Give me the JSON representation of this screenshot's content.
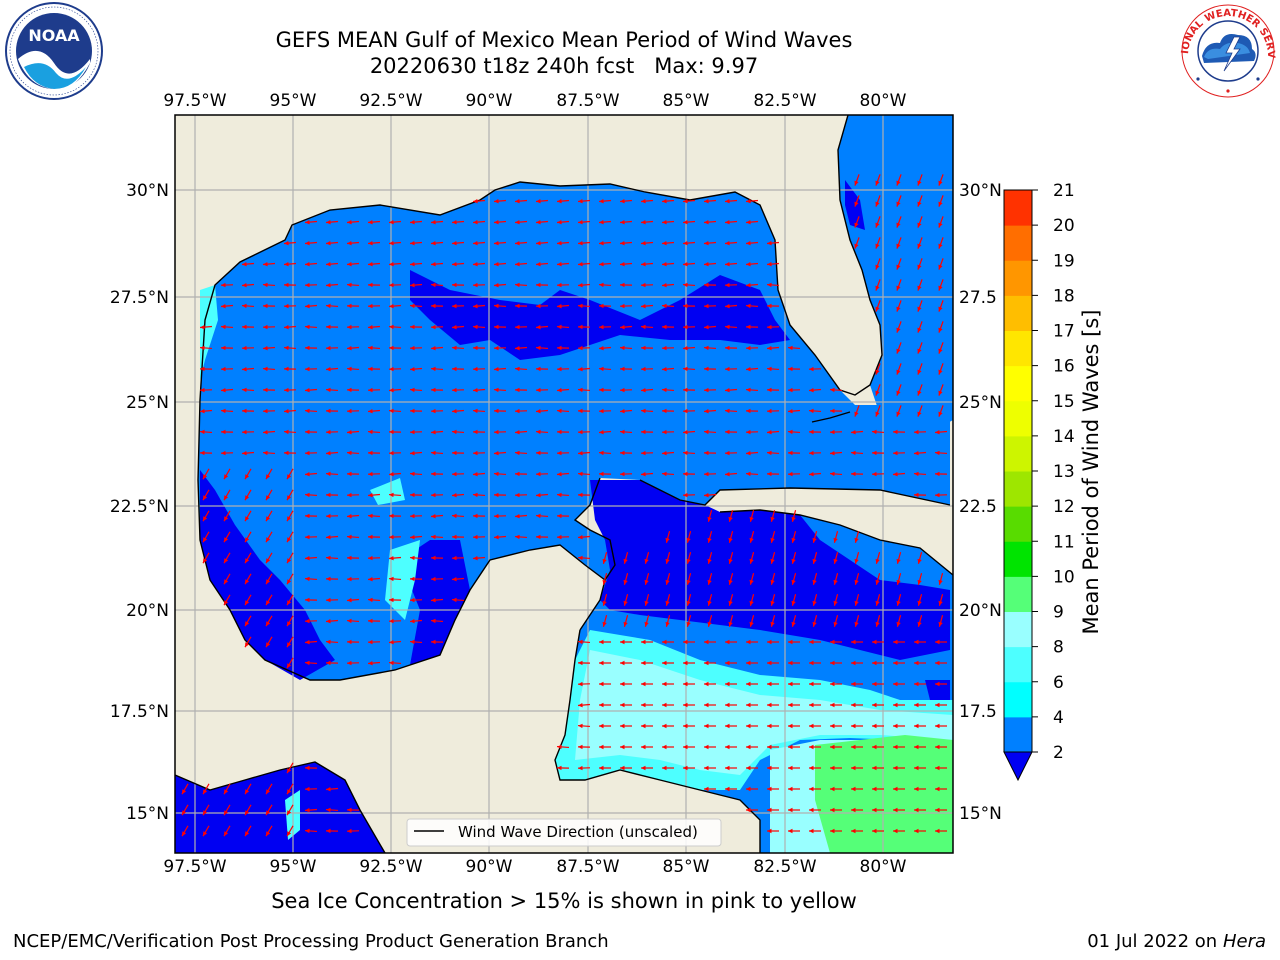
{
  "title": {
    "line1": "GEFS MEAN Gulf of Mexico Mean Period of Wind Waves",
    "line2": "20220630 t18z 240h fcst",
    "max_label": "Max: 9.97"
  },
  "logos": {
    "left": {
      "icon": "noaa-logo",
      "text": "NOAA",
      "ring_text": "NATIONAL OCEANIC AND ATMOSPHERIC ADMINISTRATION · U.S. DEPARTMENT OF COMMERCE"
    },
    "right": {
      "icon": "nws-logo",
      "ring_text": "NATIONAL WEATHER SERVICE"
    }
  },
  "map": {
    "lon_ticks": [
      "97.5°W",
      "95°W",
      "92.5°W",
      "90°W",
      "87.5°W",
      "85°W",
      "82.5°W",
      "80°W"
    ],
    "lat_ticks_left": [
      "30°N",
      "27.5°N",
      "25°N",
      "22.5°N",
      "20°N",
      "17.5°N",
      "15°N"
    ],
    "lat_ticks_right": [
      "30°N",
      "27.5",
      "25°N",
      "22.5",
      "20°N",
      "17.5",
      "15°N"
    ],
    "legend_label": "Wind Wave Direction (unscaled)",
    "colors": {
      "land": "#efecdc",
      "ocean_2_4": "#0080ff",
      "ocean_0_2": "#0000f2",
      "cyan_4_6": "#00ffff",
      "cyan_6_8": "#4dffff",
      "cyan_8_9": "#99ffff",
      "green_9_10": "#55ff78",
      "arrow": "#ff0000",
      "grid": "#b0b0b0"
    }
  },
  "colorbar": {
    "label": "Mean Period of Wind Waves [s]",
    "ticks": [
      "2",
      "4",
      "6",
      "8",
      "9",
      "10",
      "11",
      "12",
      "13",
      "14",
      "15",
      "16",
      "17",
      "18",
      "19",
      "20",
      "21"
    ],
    "colors": [
      "#0080ff",
      "#00ffff",
      "#4dffff",
      "#99ffff",
      "#55ff78",
      "#00e400",
      "#58dc00",
      "#9ee600",
      "#cdf500",
      "#eeff00",
      "#ffff00",
      "#ffe600",
      "#ffbe00",
      "#ff9600",
      "#ff6e00",
      "#ff3200"
    ],
    "extend_color": "#0000f2"
  },
  "notes": {
    "sea_ice": "Sea Ice Concentration > 15% is shown in pink to yellow",
    "credit": "NCEP/EMC/Verification Post Processing Product Generation Branch",
    "date": "01 Jul 2022 on",
    "host": "Hera"
  }
}
